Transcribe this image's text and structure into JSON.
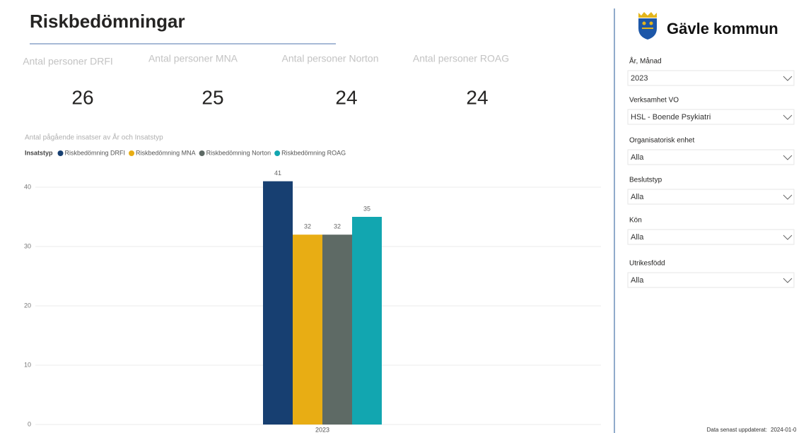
{
  "header": {
    "title": "Riskbedömningar"
  },
  "kpis": [
    {
      "label": "Antal personer DRFI",
      "value": 26
    },
    {
      "label": "Antal personer MNA",
      "value": 25
    },
    {
      "label": "Antal personer Norton",
      "value": 24
    },
    {
      "label": "Antal personer ROAG",
      "value": 24
    }
  ],
  "chart_data": {
    "type": "bar",
    "title": "Antal pågående insatser av År och Insatstyp",
    "legend_title": "Insatstyp",
    "categories": [
      "2023"
    ],
    "series": [
      {
        "name": "Riskbedömning DRFI",
        "color": "#173f71",
        "values": [
          41
        ]
      },
      {
        "name": "Riskbedömning MNA",
        "color": "#e8ad14",
        "values": [
          32
        ]
      },
      {
        "name": "Riskbedömning Norton",
        "color": "#5e6a65",
        "values": [
          32
        ]
      },
      {
        "name": "Riskbedömning ROAG",
        "color": "#12a6b0",
        "values": [
          35
        ]
      }
    ],
    "ylim": [
      0,
      45
    ],
    "yticks": [
      0,
      10,
      20,
      30,
      40
    ],
    "grid": true
  },
  "sidebar": {
    "brand": "Gävle kommun",
    "filters": [
      {
        "label": "År, Månad",
        "value": "2023"
      },
      {
        "label": "Verksamhet VO",
        "value": "HSL - Boende Psykiatri"
      },
      {
        "label": "Organisatorisk enhet",
        "value": "Alla"
      },
      {
        "label": "Beslutstyp",
        "value": "Alla"
      },
      {
        "label": "Kön",
        "value": "Alla"
      },
      {
        "label": "Utrikesfödd",
        "value": "Alla"
      }
    ],
    "footer": {
      "label": "Data senast uppdaterat:",
      "value": "2024-01-0"
    }
  }
}
